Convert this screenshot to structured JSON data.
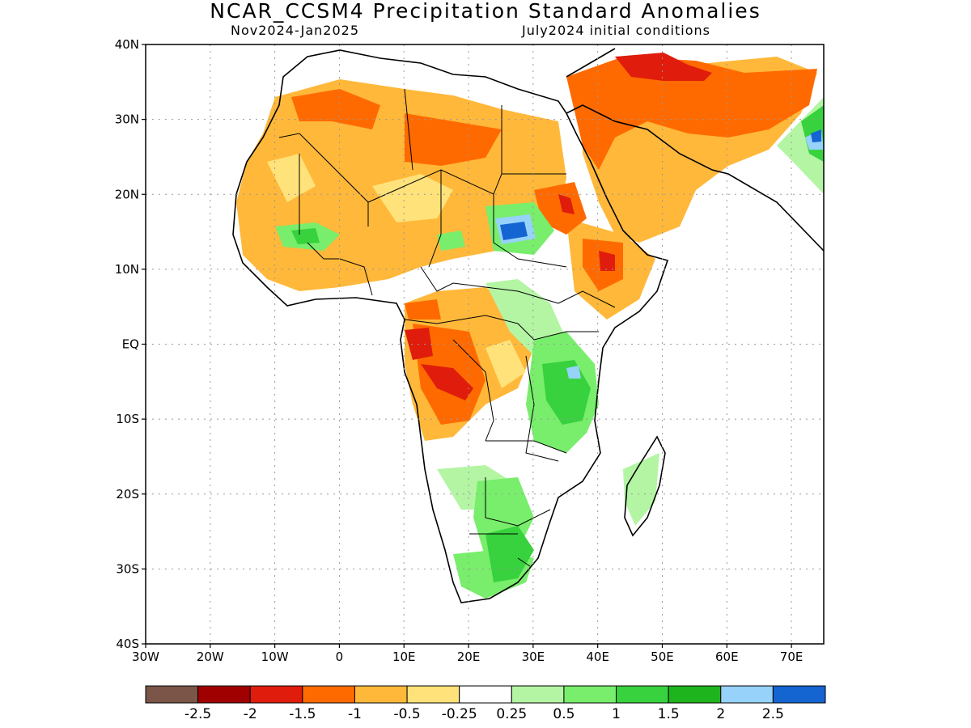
{
  "title": "NCAR_CCSM4 Precipitation Standard Anomalies",
  "subtitle_left": "Nov2024-Jan2025",
  "subtitle_right": "July2024 initial conditions",
  "map": {
    "lon_range": [
      -30,
      75
    ],
    "lat_range": [
      -40,
      40
    ],
    "grid": "dotted",
    "lon_ticks": [
      {
        "value": -30,
        "label": "30W"
      },
      {
        "value": -20,
        "label": "20W"
      },
      {
        "value": -10,
        "label": "10W"
      },
      {
        "value": 0,
        "label": "0"
      },
      {
        "value": 10,
        "label": "10E"
      },
      {
        "value": 20,
        "label": "20E"
      },
      {
        "value": 30,
        "label": "30E"
      },
      {
        "value": 40,
        "label": "40E"
      },
      {
        "value": 50,
        "label": "50E"
      },
      {
        "value": 60,
        "label": "60E"
      },
      {
        "value": 70,
        "label": "70E"
      }
    ],
    "lat_ticks": [
      {
        "value": 40,
        "label": "40N"
      },
      {
        "value": 30,
        "label": "30N"
      },
      {
        "value": 20,
        "label": "20N"
      },
      {
        "value": 10,
        "label": "10N"
      },
      {
        "value": 0,
        "label": "EQ"
      },
      {
        "value": -10,
        "label": "10S"
      },
      {
        "value": -20,
        "label": "20S"
      },
      {
        "value": -30,
        "label": "30S"
      },
      {
        "value": -40,
        "label": "40S"
      }
    ]
  },
  "colorbar": {
    "colors": [
      "#7a5548",
      "#a00000",
      "#e01c0c",
      "#ff6a00",
      "#ffb83a",
      "#ffe27a",
      "#ffffff",
      "#b4f5a4",
      "#78ee6c",
      "#37d23d",
      "#1eb41e",
      "#96d2fa",
      "#1464d2"
    ],
    "labels": [
      "-2.5",
      "-2",
      "-1.5",
      "-1",
      "-0.5",
      "-0.25",
      "0.25",
      "0.5",
      "1",
      "1.5",
      "2",
      "2.5"
    ]
  }
}
